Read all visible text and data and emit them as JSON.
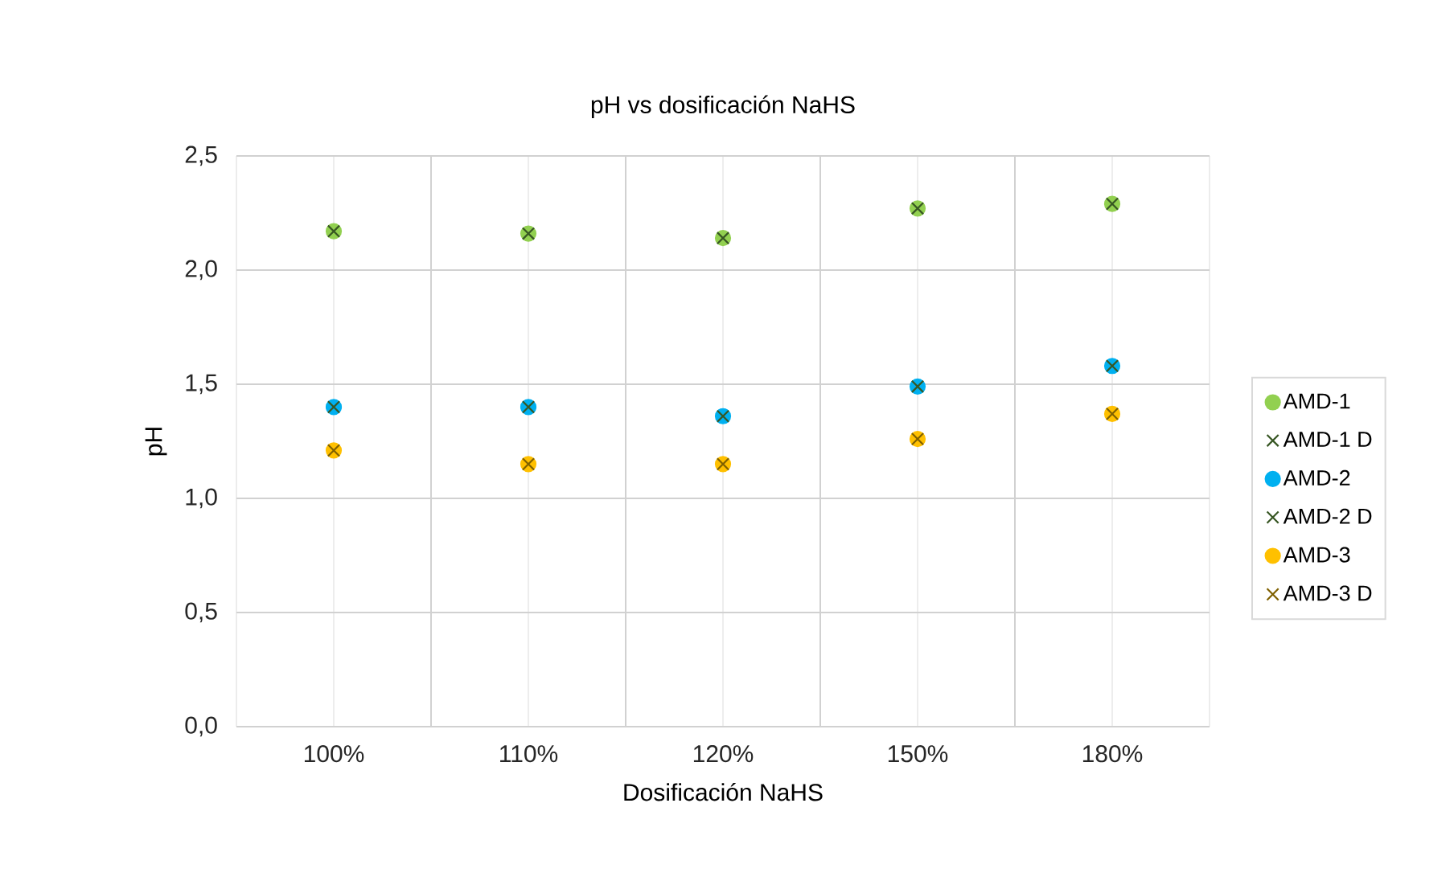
{
  "chart_data": {
    "type": "scatter",
    "title": "pH vs dosificación NaHS",
    "xlabel": "Dosificación NaHS",
    "ylabel": "pH",
    "categories": [
      "100%",
      "110%",
      "120%",
      "150%",
      "180%"
    ],
    "series": [
      {
        "name": "AMD-1",
        "color": "#92d050",
        "marker": "circle",
        "values": [
          2.17,
          2.16,
          2.14,
          2.27,
          2.29
        ]
      },
      {
        "name": "AMD-1 D",
        "color": "#375623",
        "marker": "cross",
        "values": [
          2.17,
          2.16,
          2.14,
          2.27,
          2.29
        ]
      },
      {
        "name": "AMD-2",
        "color": "#00b0f0",
        "marker": "circle",
        "values": [
          1.4,
          1.4,
          1.36,
          1.49,
          1.58
        ]
      },
      {
        "name": "AMD-2 D",
        "color": "#375623",
        "marker": "cross",
        "values": [
          1.4,
          1.4,
          1.36,
          1.49,
          1.58
        ]
      },
      {
        "name": "AMD-3",
        "color": "#ffc000",
        "marker": "circle",
        "values": [
          1.21,
          1.15,
          1.15,
          1.26,
          1.37
        ]
      },
      {
        "name": "AMD-3 D",
        "color": "#7f6000",
        "marker": "cross",
        "values": [
          1.21,
          1.15,
          1.15,
          1.26,
          1.37
        ]
      }
    ],
    "ylim": [
      0,
      2.5
    ],
    "yticks": [
      {
        "value": 0,
        "label": "0,0"
      },
      {
        "value": 0.5,
        "label": "0,5"
      },
      {
        "value": 1,
        "label": "1,0"
      },
      {
        "value": 1.5,
        "label": "1,5"
      },
      {
        "value": 2,
        "label": "2,0"
      },
      {
        "value": 2.5,
        "label": "2,5"
      }
    ],
    "grid": true,
    "legend": "right"
  }
}
